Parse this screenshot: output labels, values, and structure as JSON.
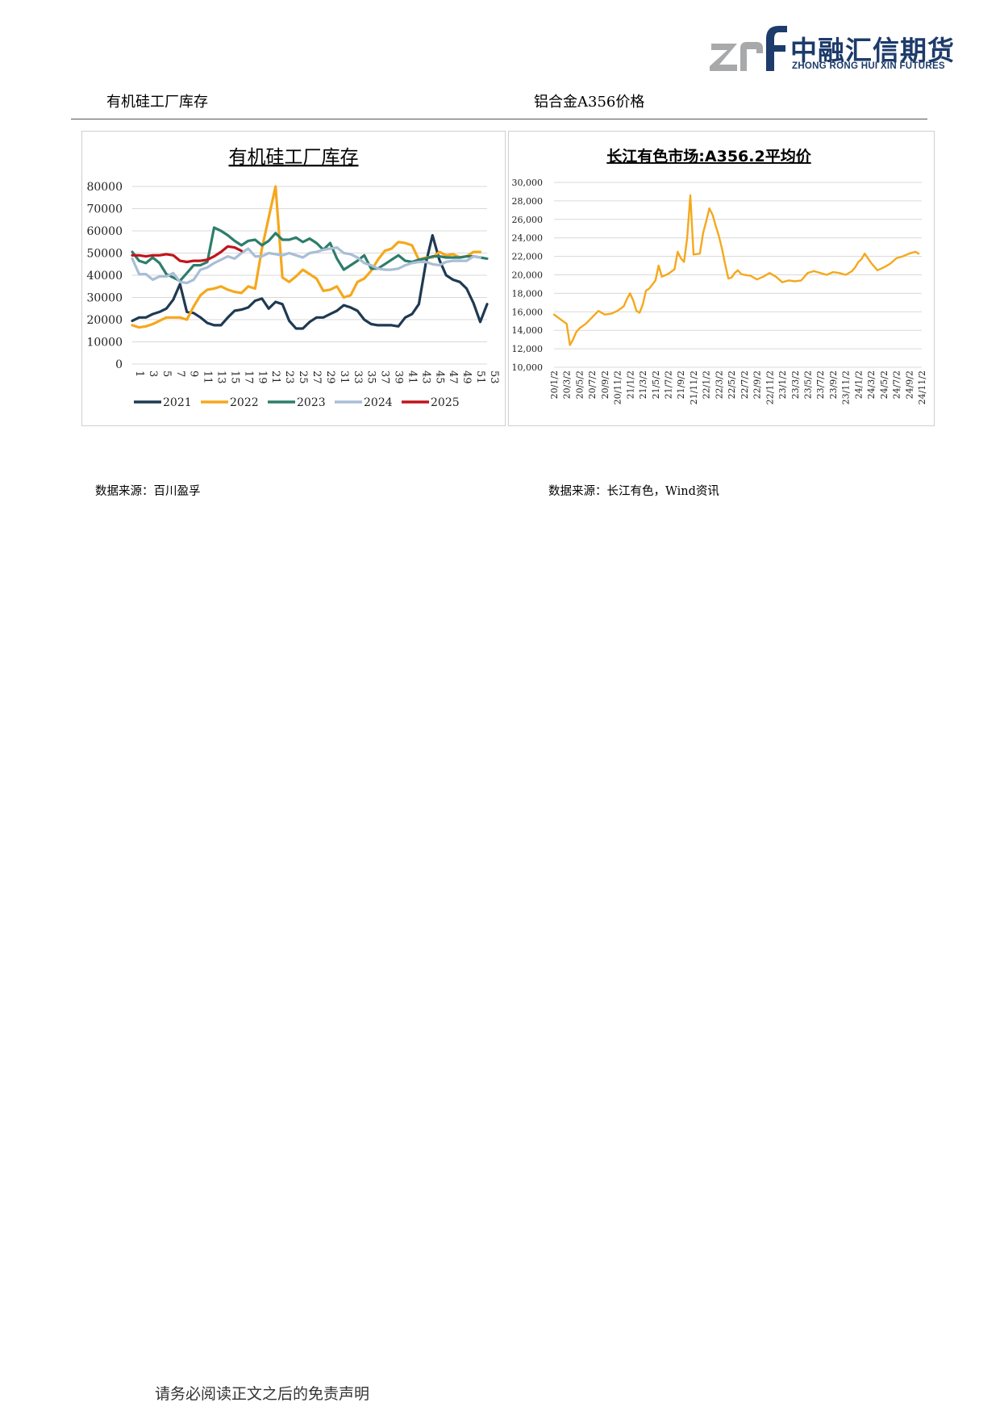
{
  "brand": {
    "name_cn": "中融汇信期货",
    "name_en": "ZHONG RONG HUI XIN FUTURES",
    "colors": {
      "logo_gray": "#a8a9ab",
      "logo_navy": "#1d3b6b"
    }
  },
  "sections": {
    "left_title": "有机硅工厂库存",
    "right_title": "铝合金A356价格",
    "left_source": "数据来源：百川盈孚",
    "right_source": "数据来源：长江有色，Wind资讯"
  },
  "footer": "请务必阅读正文之后的免责声明",
  "chart_data": [
    {
      "type": "line",
      "title": "有机硅工厂库存",
      "xlabel": "",
      "ylabel": "",
      "x_ticks": [
        "1",
        "3",
        "5",
        "7",
        "9",
        "11",
        "13",
        "15",
        "17",
        "19",
        "21",
        "23",
        "25",
        "27",
        "29",
        "31",
        "33",
        "35",
        "37",
        "39",
        "41",
        "43",
        "45",
        "47",
        "49",
        "51",
        "53"
      ],
      "ylim": [
        0,
        80000
      ],
      "y_ticks": [
        "80000",
        "70000",
        "60000",
        "50000",
        "40000",
        "30000",
        "20000",
        "10000",
        "0"
      ],
      "grid": true,
      "legend": "bottom",
      "series": [
        {
          "name": "2021",
          "color": "#1f3a52",
          "x": [
            1,
            2,
            3,
            4,
            5,
            6,
            7,
            8,
            9,
            10,
            11,
            12,
            13,
            14,
            15,
            16,
            17,
            18,
            19,
            20,
            21,
            22,
            23,
            24,
            25,
            26,
            27,
            28,
            29,
            30,
            31,
            32,
            33,
            34,
            35,
            36,
            37,
            38,
            39,
            40,
            41,
            42,
            43,
            44,
            45,
            46,
            47,
            48,
            49,
            50,
            51,
            52,
            53
          ],
          "values": [
            19500,
            21000,
            21000,
            22500,
            23500,
            25000,
            29000,
            36000,
            23500,
            23000,
            21000,
            18500,
            17500,
            17500,
            21000,
            24000,
            24500,
            25500,
            28500,
            29500,
            25000,
            28000,
            27000,
            19500,
            16000,
            16000,
            19000,
            21000,
            21000,
            22500,
            24000,
            26500,
            25500,
            24000,
            20000,
            18000,
            17500,
            17500,
            17500,
            17000,
            21000,
            22500,
            27000,
            45000,
            58000,
            47000,
            40000,
            38000,
            37000,
            34000,
            27500,
            19000,
            27000
          ]
        },
        {
          "name": "2022",
          "color": "#f5a81c",
          "x": [
            1,
            2,
            3,
            4,
            5,
            6,
            7,
            8,
            9,
            10,
            11,
            12,
            13,
            14,
            15,
            16,
            17,
            18,
            19,
            20,
            21,
            22,
            23,
            24,
            25,
            26,
            27,
            28,
            29,
            30,
            31,
            32,
            33,
            34,
            35,
            36,
            37,
            38,
            39,
            40,
            41,
            42,
            43,
            44,
            45,
            46,
            47,
            48,
            49,
            50,
            51,
            52
          ],
          "values": [
            17500,
            16500,
            17000,
            18000,
            19500,
            21000,
            21000,
            21000,
            20000,
            26000,
            31000,
            33500,
            34000,
            35000,
            33500,
            32500,
            32000,
            35000,
            34000,
            52000,
            66000,
            80000,
            39000,
            37000,
            39500,
            42500,
            40500,
            38500,
            33000,
            33500,
            35000,
            30000,
            31000,
            37000,
            38500,
            42000,
            47000,
            51000,
            52000,
            55000,
            54500,
            53500,
            47000,
            48000,
            48000,
            50500,
            49000,
            49500,
            48000,
            48500,
            50500,
            50500
          ]
        },
        {
          "name": "2023",
          "color": "#2e7d6b",
          "x": [
            1,
            2,
            3,
            4,
            5,
            6,
            7,
            8,
            9,
            10,
            11,
            12,
            13,
            14,
            15,
            16,
            17,
            18,
            19,
            20,
            21,
            22,
            23,
            24,
            25,
            26,
            27,
            28,
            29,
            30,
            31,
            32,
            33,
            34,
            35,
            36,
            37,
            38,
            39,
            40,
            41,
            42,
            43,
            44,
            45,
            46,
            47,
            48,
            49,
            50,
            51,
            52,
            53
          ],
          "values": [
            50500,
            46500,
            45500,
            48000,
            45500,
            40500,
            39000,
            37500,
            41000,
            44500,
            44500,
            46000,
            61500,
            60000,
            58000,
            55500,
            53500,
            55500,
            56000,
            53500,
            55500,
            59000,
            56000,
            56000,
            57000,
            55000,
            56500,
            54500,
            51500,
            54500,
            47500,
            42500,
            44500,
            46500,
            49000,
            43000,
            43000,
            45000,
            47000,
            49000,
            46500,
            46000,
            47000,
            47500,
            48500,
            48500,
            48000,
            48000,
            48000,
            48500,
            48500,
            48000,
            47500
          ]
        },
        {
          "name": "2024",
          "color": "#a8bed6",
          "x": [
            1,
            2,
            3,
            4,
            5,
            6,
            7,
            8,
            9,
            10,
            11,
            12,
            13,
            14,
            15,
            16,
            17,
            18,
            19,
            20,
            21,
            22,
            23,
            24,
            25,
            26,
            27,
            28,
            29,
            30,
            31,
            32,
            33,
            34,
            35,
            36,
            37,
            38,
            39,
            40,
            41,
            42,
            43,
            44,
            45,
            46,
            47,
            48,
            49,
            50,
            51,
            52
          ],
          "values": [
            47500,
            40500,
            40500,
            38000,
            39500,
            39500,
            41000,
            37000,
            36500,
            38000,
            42500,
            43500,
            45500,
            47000,
            48500,
            47500,
            50000,
            52000,
            48500,
            48500,
            50000,
            49500,
            49000,
            50000,
            49000,
            48000,
            50000,
            50500,
            51500,
            52000,
            52500,
            50000,
            49500,
            48000,
            45500,
            44500,
            43000,
            42500,
            42500,
            43000,
            44500,
            45500,
            46000,
            46000,
            45000,
            44500,
            46000,
            46500,
            46500,
            46500,
            48500,
            48000
          ]
        },
        {
          "name": "2025",
          "color": "#c0141c",
          "x": [
            1,
            2,
            3,
            4,
            5,
            6,
            7,
            8,
            9,
            10,
            11,
            12,
            13,
            14,
            15,
            16,
            17
          ],
          "values": [
            49000,
            49000,
            48500,
            49000,
            49000,
            49500,
            49000,
            46500,
            46000,
            46500,
            46500,
            47000,
            48500,
            50500,
            53000,
            52500,
            51000
          ]
        }
      ]
    },
    {
      "type": "line",
      "title": "长江有色市场:A356.2平均价",
      "xlabel": "",
      "ylabel": "",
      "x_ticks": [
        "20/1/2",
        "20/3/2",
        "20/5/2",
        "20/7/2",
        "20/9/2",
        "20/11/2",
        "21/1/2",
        "21/3/2",
        "21/5/2",
        "21/7/2",
        "21/9/2",
        "21/11/2",
        "22/1/2",
        "22/3/2",
        "22/5/2",
        "22/7/2",
        "22/9/2",
        "22/11/2",
        "23/1/2",
        "23/3/2",
        "23/5/2",
        "23/7/2",
        "23/9/2",
        "23/11/2",
        "24/1/2",
        "24/3/2",
        "24/5/2",
        "24/7/2",
        "24/9/2",
        "24/11/2"
      ],
      "ylim": [
        10000,
        30000
      ],
      "y_ticks": [
        "30,000",
        "28,000",
        "26,000",
        "24,000",
        "22,000",
        "20,000",
        "18,000",
        "16,000",
        "14,000",
        "12,000",
        "10,000"
      ],
      "grid": true,
      "legend": "none",
      "series": [
        {
          "name": "",
          "color": "#f5a81c",
          "x": [
            0,
            1,
            2,
            2.5,
            3,
            3.5,
            4,
            5,
            6,
            7,
            8,
            9,
            10,
            11,
            11.5,
            12,
            12.5,
            13,
            13.5,
            14,
            14.5,
            15,
            16,
            16.5,
            17,
            18,
            19,
            19.5,
            20,
            20.5,
            21,
            21.5,
            22,
            23,
            23.5,
            24,
            24.5,
            25,
            25.5,
            26,
            26.5,
            27,
            27.5,
            28,
            28.5,
            29,
            29.5,
            30,
            31,
            32,
            33,
            34,
            35,
            36,
            37,
            38,
            39,
            40,
            41,
            42,
            43,
            44,
            45,
            46,
            47,
            47.5,
            48,
            48.5,
            49,
            50,
            51,
            52,
            53,
            54,
            55,
            56,
            57,
            57.5
          ],
          "values": [
            15700,
            15200,
            14700,
            12400,
            13000,
            13800,
            14200,
            14700,
            15400,
            16100,
            15700,
            15800,
            16100,
            16600,
            17400,
            18000,
            17200,
            16100,
            15900,
            16800,
            18300,
            18500,
            19400,
            21000,
            19800,
            20100,
            20600,
            22500,
            21800,
            21400,
            24000,
            28600,
            22200,
            22300,
            24500,
            25800,
            27200,
            26500,
            25300,
            24200,
            22800,
            21100,
            19600,
            19700,
            20200,
            20500,
            20100,
            20000,
            19900,
            19500,
            19800,
            20200,
            19800,
            19200,
            19400,
            19300,
            19400,
            20200,
            20400,
            20200,
            20000,
            20300,
            20200,
            20000,
            20400,
            20800,
            21400,
            21700,
            22300,
            21300,
            20500,
            20800,
            21200,
            21800,
            22000,
            22300,
            22500,
            22300
          ]
        }
      ]
    }
  ]
}
